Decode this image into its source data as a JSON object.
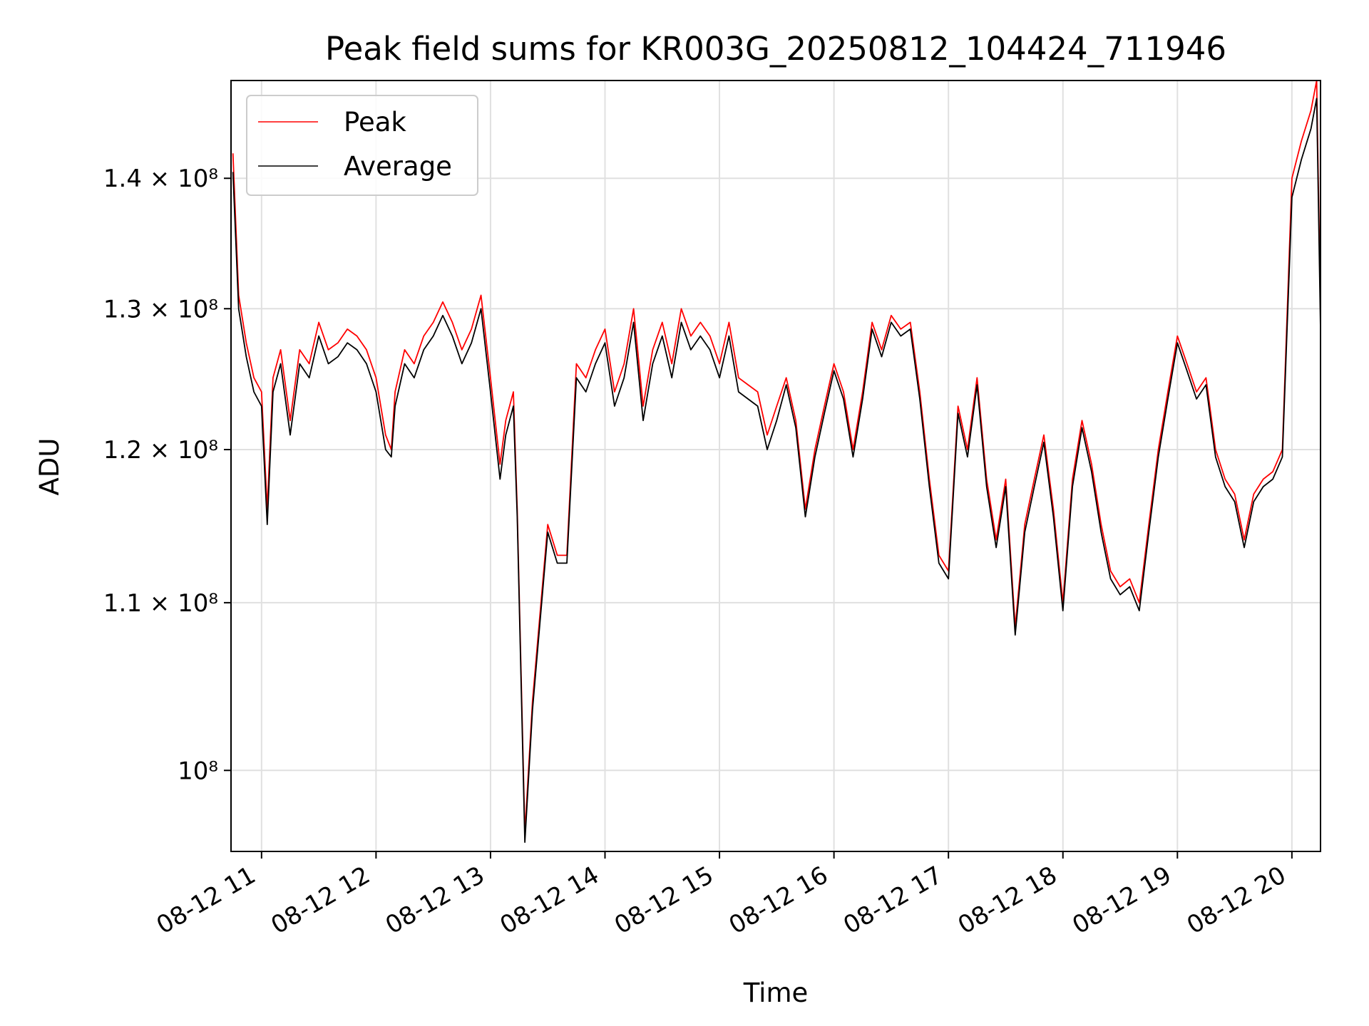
{
  "chart_data": {
    "type": "line",
    "title": "Peak field sums for KR003G_20250812_104424_711946",
    "xlabel": "Time",
    "ylabel": "ADU",
    "y_scale": "log",
    "ylim": [
      95500000,
      148000000
    ],
    "xlim": [
      "2025-08-12 10:44",
      "2025-08-12 20:15"
    ],
    "grid": true,
    "legend_placement": "top-left",
    "x_ticks": [
      "08-12 11",
      "08-12 12",
      "08-12 13",
      "08-12 14",
      "08-12 15",
      "08-12 16",
      "08-12 17",
      "08-12 18",
      "08-12 19",
      "08-12 20"
    ],
    "y_ticks": [
      {
        "value": 100000000,
        "label": "10⁸"
      },
      {
        "value": 110000000,
        "label": "1.1 × 10⁸"
      },
      {
        "value": 120000000,
        "label": "1.2 × 10⁸"
      },
      {
        "value": 130000000,
        "label": "1.3 × 10⁸"
      },
      {
        "value": 140000000,
        "label": "1.4 × 10⁸"
      }
    ],
    "series": [
      {
        "name": "Peak",
        "color": "#ff0000",
        "x": [
          "10:45",
          "10:48",
          "10:52",
          "10:56",
          "11:00",
          "11:03",
          "11:06",
          "11:10",
          "11:15",
          "11:20",
          "11:25",
          "11:30",
          "11:35",
          "11:40",
          "11:45",
          "11:50",
          "11:55",
          "12:00",
          "12:05",
          "12:08",
          "12:10",
          "12:15",
          "12:20",
          "12:25",
          "12:30",
          "12:35",
          "12:40",
          "12:45",
          "12:50",
          "12:55",
          "13:00",
          "13:05",
          "13:08",
          "13:12",
          "13:14",
          "13:18",
          "13:22",
          "13:25",
          "13:30",
          "13:35",
          "13:40",
          "13:45",
          "13:50",
          "13:55",
          "14:00",
          "14:05",
          "14:10",
          "14:15",
          "14:20",
          "14:25",
          "14:30",
          "14:35",
          "14:40",
          "14:45",
          "14:50",
          "14:55",
          "15:00",
          "15:05",
          "15:10",
          "15:15",
          "15:20",
          "15:25",
          "15:30",
          "15:35",
          "15:40",
          "15:45",
          "15:50",
          "15:55",
          "16:00",
          "16:05",
          "16:10",
          "16:15",
          "16:20",
          "16:25",
          "16:30",
          "16:35",
          "16:40",
          "16:45",
          "16:50",
          "16:55",
          "17:00",
          "17:05",
          "17:10",
          "17:15",
          "17:20",
          "17:25",
          "17:30",
          "17:35",
          "17:40",
          "17:45",
          "17:50",
          "17:55",
          "18:00",
          "18:05",
          "18:10",
          "18:15",
          "18:20",
          "18:25",
          "18:30",
          "18:35",
          "18:40",
          "18:45",
          "18:50",
          "18:55",
          "19:00",
          "19:05",
          "19:10",
          "19:15",
          "19:20",
          "19:25",
          "19:30",
          "19:35",
          "19:40",
          "19:45",
          "19:50",
          "19:55",
          "20:00",
          "20:05",
          "20:10",
          "20:13",
          "20:15"
        ],
        "values": [
          142000000,
          131000000,
          127500000,
          125000000,
          124000000,
          116000000,
          125000000,
          127000000,
          122000000,
          127000000,
          126000000,
          129000000,
          127000000,
          127500000,
          128500000,
          128000000,
          127000000,
          125000000,
          121000000,
          120000000,
          124000000,
          127000000,
          126000000,
          128000000,
          129000000,
          130500000,
          129000000,
          127000000,
          128500000,
          131000000,
          125000000,
          119000000,
          122000000,
          124000000,
          116000000,
          96500000,
          104000000,
          108000000,
          115000000,
          113000000,
          113000000,
          126000000,
          125000000,
          127000000,
          128500000,
          124000000,
          126000000,
          130000000,
          123000000,
          127000000,
          129000000,
          126000000,
          130000000,
          128000000,
          129000000,
          128000000,
          126000000,
          129000000,
          125000000,
          124500000,
          124000000,
          121000000,
          123000000,
          125000000,
          122000000,
          116000000,
          120000000,
          123000000,
          126000000,
          124000000,
          120000000,
          124000000,
          129000000,
          127000000,
          129500000,
          128500000,
          129000000,
          124000000,
          118000000,
          113000000,
          112000000,
          123000000,
          120000000,
          125000000,
          118000000,
          114000000,
          118000000,
          108500000,
          115000000,
          118000000,
          121000000,
          116000000,
          110000000,
          118000000,
          122000000,
          119000000,
          115000000,
          112000000,
          111000000,
          111500000,
          110000000,
          115000000,
          120000000,
          124000000,
          128000000,
          126000000,
          124000000,
          125000000,
          120000000,
          118000000,
          117000000,
          114000000,
          117000000,
          118000000,
          118500000,
          120000000,
          140000000,
          143000000,
          145500000,
          148000000,
          129500000
        ]
      },
      {
        "name": "Average",
        "color": "#000000",
        "x": [
          "10:45",
          "10:48",
          "10:52",
          "10:56",
          "11:00",
          "11:03",
          "11:06",
          "11:10",
          "11:15",
          "11:20",
          "11:25",
          "11:30",
          "11:35",
          "11:40",
          "11:45",
          "11:50",
          "11:55",
          "12:00",
          "12:05",
          "12:08",
          "12:10",
          "12:15",
          "12:20",
          "12:25",
          "12:30",
          "12:35",
          "12:40",
          "12:45",
          "12:50",
          "12:55",
          "13:00",
          "13:05",
          "13:08",
          "13:12",
          "13:14",
          "13:18",
          "13:22",
          "13:25",
          "13:30",
          "13:35",
          "13:40",
          "13:45",
          "13:50",
          "13:55",
          "14:00",
          "14:05",
          "14:10",
          "14:15",
          "14:20",
          "14:25",
          "14:30",
          "14:35",
          "14:40",
          "14:45",
          "14:50",
          "14:55",
          "15:00",
          "15:05",
          "15:10",
          "15:15",
          "15:20",
          "15:25",
          "15:30",
          "15:35",
          "15:40",
          "15:45",
          "15:50",
          "15:55",
          "16:00",
          "16:05",
          "16:10",
          "16:15",
          "16:20",
          "16:25",
          "16:30",
          "16:35",
          "16:40",
          "16:45",
          "16:50",
          "16:55",
          "17:00",
          "17:05",
          "17:10",
          "17:15",
          "17:20",
          "17:25",
          "17:30",
          "17:35",
          "17:40",
          "17:45",
          "17:50",
          "17:55",
          "18:00",
          "18:05",
          "18:10",
          "18:15",
          "18:20",
          "18:25",
          "18:30",
          "18:35",
          "18:40",
          "18:45",
          "18:50",
          "18:55",
          "19:00",
          "19:05",
          "19:10",
          "19:15",
          "19:20",
          "19:25",
          "19:30",
          "19:35",
          "19:40",
          "19:45",
          "19:50",
          "19:55",
          "20:00",
          "20:05",
          "20:10",
          "20:13",
          "20:15"
        ],
        "values": [
          140500000,
          130000000,
          126500000,
          124000000,
          123000000,
          115000000,
          124000000,
          126000000,
          121000000,
          126000000,
          125000000,
          128000000,
          126000000,
          126500000,
          127500000,
          127000000,
          126000000,
          124000000,
          120000000,
          119500000,
          123000000,
          126000000,
          125000000,
          127000000,
          128000000,
          129500000,
          128000000,
          126000000,
          127500000,
          130000000,
          124000000,
          118000000,
          121000000,
          123000000,
          115500000,
          96000000,
          103500000,
          107500000,
          114500000,
          112500000,
          112500000,
          125000000,
          124000000,
          126000000,
          127500000,
          123000000,
          125000000,
          129000000,
          122000000,
          126000000,
          128000000,
          125000000,
          129000000,
          127000000,
          128000000,
          127000000,
          125000000,
          128000000,
          124000000,
          123500000,
          123000000,
          120000000,
          122000000,
          124500000,
          121500000,
          115500000,
          119500000,
          122500000,
          125500000,
          123500000,
          119500000,
          123500000,
          128500000,
          126500000,
          129000000,
          128000000,
          128500000,
          123500000,
          117500000,
          112500000,
          111500000,
          122500000,
          119500000,
          124500000,
          117500000,
          113500000,
          117500000,
          108000000,
          114500000,
          117500000,
          120500000,
          115500000,
          109500000,
          117500000,
          121500000,
          118500000,
          114500000,
          111500000,
          110500000,
          111000000,
          109500000,
          114500000,
          119500000,
          123500000,
          127500000,
          125500000,
          123500000,
          124500000,
          119500000,
          117500000,
          116500000,
          113500000,
          116500000,
          117500000,
          118000000,
          119500000,
          138500000,
          141500000,
          144000000,
          146500000,
          128500000
        ]
      }
    ]
  }
}
